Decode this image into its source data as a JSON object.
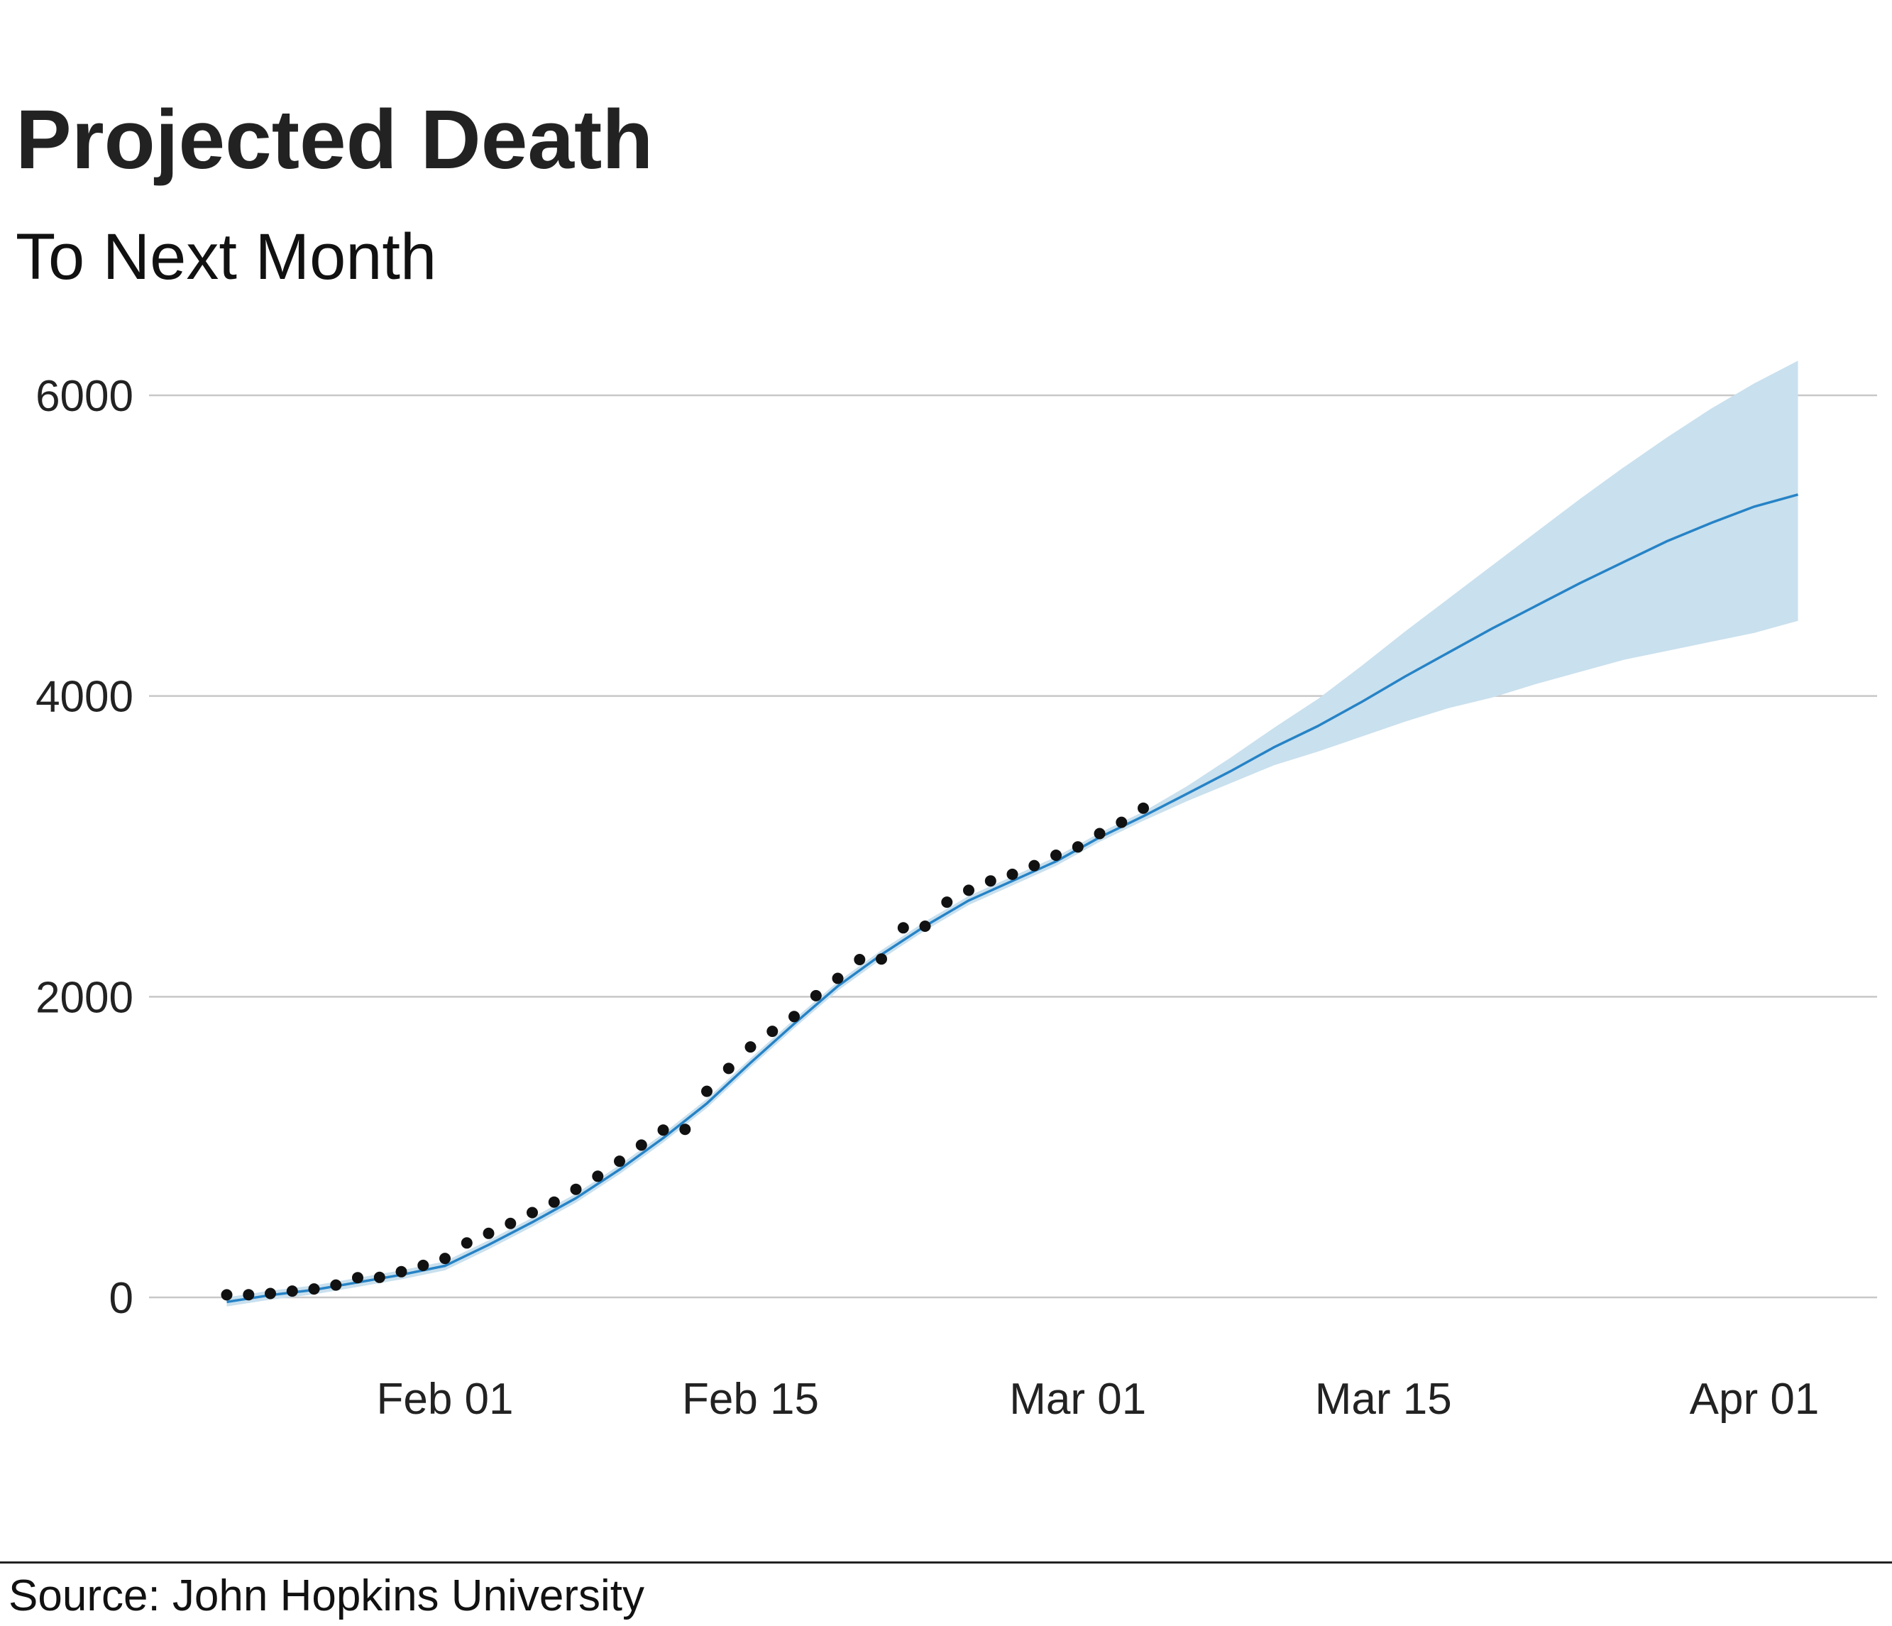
{
  "chart_data": {
    "type": "line",
    "title": "Projected Death",
    "subtitle": "To Next Month",
    "caption": "Source: John Hopkins University",
    "xlabel": "",
    "ylabel": "",
    "x_ticks": [
      {
        "date": "2020-02-01",
        "label": "Feb 01"
      },
      {
        "date": "2020-02-15",
        "label": "Feb 15"
      },
      {
        "date": "2020-03-01",
        "label": "Mar 01"
      },
      {
        "date": "2020-03-15",
        "label": "Mar 15"
      },
      {
        "date": "2020-04-01",
        "label": "Apr 01"
      }
    ],
    "y_ticks": [
      0,
      2000,
      4000,
      6000
    ],
    "xlim": [
      "2020-01-21",
      "2020-04-06"
    ],
    "ylim": [
      -350,
      6400
    ],
    "grid": "horizontal",
    "colors": {
      "observed": "#111111",
      "fit_line": "#2683c6",
      "band": "#c9e0ee",
      "grid": "#c8c8c8",
      "text": "#222222"
    },
    "observed": {
      "x": [
        "2020-01-22",
        "2020-01-23",
        "2020-01-24",
        "2020-01-25",
        "2020-01-26",
        "2020-01-27",
        "2020-01-28",
        "2020-01-29",
        "2020-01-30",
        "2020-01-31",
        "2020-02-01",
        "2020-02-02",
        "2020-02-03",
        "2020-02-04",
        "2020-02-05",
        "2020-02-06",
        "2020-02-07",
        "2020-02-08",
        "2020-02-09",
        "2020-02-10",
        "2020-02-11",
        "2020-02-12",
        "2020-02-13",
        "2020-02-14",
        "2020-02-15",
        "2020-02-16",
        "2020-02-17",
        "2020-02-18",
        "2020-02-19",
        "2020-02-20",
        "2020-02-21",
        "2020-02-22",
        "2020-02-23",
        "2020-02-24",
        "2020-02-25",
        "2020-02-26",
        "2020-02-27",
        "2020-02-28",
        "2020-02-29",
        "2020-03-01",
        "2020-03-02",
        "2020-03-03",
        "2020-03-04"
      ],
      "y": [
        17,
        18,
        26,
        42,
        56,
        82,
        131,
        133,
        171,
        213,
        259,
        362,
        426,
        492,
        564,
        634,
        719,
        806,
        906,
        1013,
        1113,
        1118,
        1371,
        1523,
        1666,
        1770,
        1868,
        2007,
        2122,
        2247,
        2251,
        2458,
        2469,
        2629,
        2708,
        2770,
        2814,
        2872,
        2941,
        2996,
        3085,
        3160,
        3254
      ]
    },
    "projection": {
      "x": [
        "2020-01-22",
        "2020-01-24",
        "2020-01-26",
        "2020-01-28",
        "2020-01-30",
        "2020-02-01",
        "2020-02-03",
        "2020-02-05",
        "2020-02-07",
        "2020-02-09",
        "2020-02-11",
        "2020-02-13",
        "2020-02-15",
        "2020-02-17",
        "2020-02-19",
        "2020-02-21",
        "2020-02-23",
        "2020-02-25",
        "2020-02-27",
        "2020-02-29",
        "2020-03-02",
        "2020-03-04",
        "2020-03-06",
        "2020-03-08",
        "2020-03-10",
        "2020-03-12",
        "2020-03-14",
        "2020-03-16",
        "2020-03-18",
        "2020-03-20",
        "2020-03-22",
        "2020-03-24",
        "2020-03-26",
        "2020-03-28",
        "2020-03-30",
        "2020-04-01",
        "2020-04-03"
      ],
      "mean": [
        -30,
        15,
        50,
        100,
        150,
        210,
        350,
        500,
        660,
        850,
        1060,
        1290,
        1560,
        1820,
        2070,
        2280,
        2470,
        2640,
        2770,
        2900,
        3060,
        3200,
        3350,
        3500,
        3660,
        3800,
        3960,
        4130,
        4290,
        4450,
        4600,
        4750,
        4890,
        5030,
        5150,
        5260,
        5340
      ],
      "lower": [
        -60,
        -15,
        20,
        70,
        120,
        180,
        320,
        470,
        630,
        820,
        1030,
        1260,
        1530,
        1790,
        2040,
        2250,
        2440,
        2610,
        2740,
        2870,
        3030,
        3170,
        3300,
        3420,
        3540,
        3630,
        3730,
        3830,
        3920,
        3990,
        4080,
        4160,
        4240,
        4300,
        4360,
        4420,
        4500
      ],
      "upper": [
        0,
        45,
        80,
        130,
        180,
        240,
        380,
        530,
        690,
        880,
        1090,
        1320,
        1590,
        1850,
        2100,
        2310,
        2500,
        2670,
        2800,
        2930,
        3090,
        3230,
        3400,
        3590,
        3790,
        3980,
        4200,
        4430,
        4650,
        4870,
        5090,
        5310,
        5520,
        5720,
        5910,
        6080,
        6230
      ]
    }
  }
}
